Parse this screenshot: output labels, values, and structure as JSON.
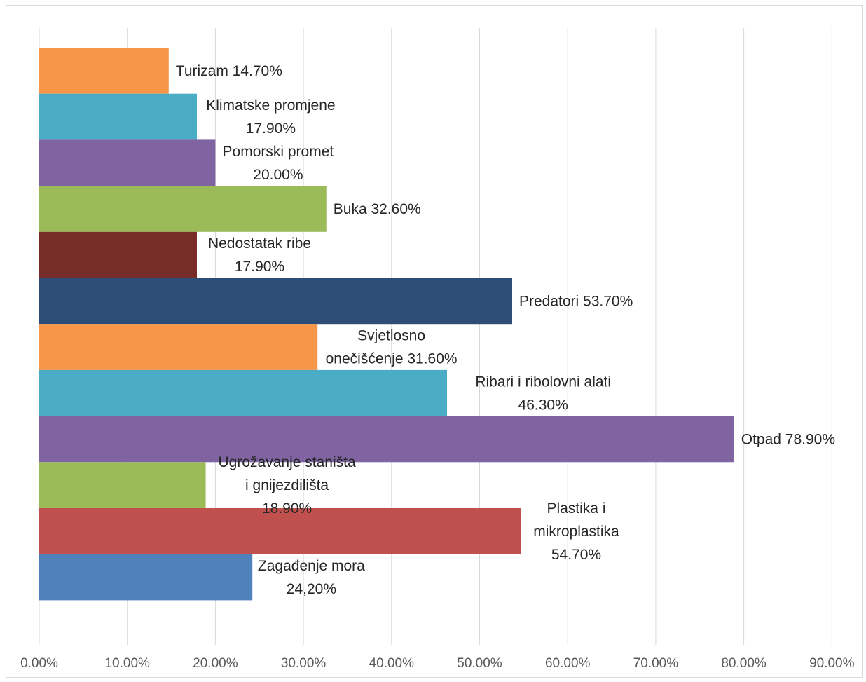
{
  "chart_data": {
    "type": "bar",
    "orientation": "horizontal",
    "title": "",
    "xlabel": "",
    "ylabel": "",
    "xlim": [
      0,
      90
    ],
    "grid": "vertical",
    "legend": "none",
    "x_ticks": [
      "0.00%",
      "10.00%",
      "20.00%",
      "30.00%",
      "40.00%",
      "50.00%",
      "60.00%",
      "70.00%",
      "80.00%",
      "90.00%"
    ],
    "bars": [
      {
        "category": "Turizam",
        "value": 14.7,
        "label": [
          "Turizam 14.70%"
        ],
        "color": "#F79646"
      },
      {
        "category": "Klimatske promjene",
        "value": 17.9,
        "label": [
          "Klimatske promjene",
          "17.90%"
        ],
        "color": "#4BACC6"
      },
      {
        "category": "Pomorski promet",
        "value": 20.0,
        "label": [
          "Pomorski promet",
          "20.00%"
        ],
        "color": "#8064A2"
      },
      {
        "category": "Buka",
        "value": 32.6,
        "label": [
          "Buka 32.60%"
        ],
        "color": "#9BBB59"
      },
      {
        "category": "Nedostatak ribe",
        "value": 17.9,
        "label": [
          "Nedostatak ribe",
          "17.90%"
        ],
        "color": "#772C2A"
      },
      {
        "category": "Predatori",
        "value": 53.7,
        "label": [
          "Predatori 53.70%"
        ],
        "color": "#2C4D75"
      },
      {
        "category": "Svjetlosno onečišćenje",
        "value": 31.6,
        "label": [
          "Svjetlosno",
          "onečišćenje 31.60%"
        ],
        "color": "#F79646"
      },
      {
        "category": "Ribari i ribolovni alati",
        "value": 46.3,
        "label": [
          "Ribari i ribolovni alati",
          "46.30%"
        ],
        "color": "#4BACC6"
      },
      {
        "category": "Otpad",
        "value": 78.9,
        "label": [
          "Otpad 78.90%"
        ],
        "color": "#8064A2"
      },
      {
        "category": "Ugrožavanje staništa i gnijezdilišta",
        "value": 18.9,
        "label": [
          "Ugrožavanje staništa",
          "i gnijezdilišta",
          "18.90%"
        ],
        "color": "#9BBB59"
      },
      {
        "category": "Plastika i mikroplastika",
        "value": 54.7,
        "label": [
          "Plastika i",
          "mikroplastika",
          "54.70%"
        ],
        "color": "#C0504D"
      },
      {
        "category": "Zagađenje mora",
        "value": 24.2,
        "label": [
          "Zagađenje mora",
          "24,20%"
        ],
        "color": "#4F81BD"
      }
    ]
  }
}
